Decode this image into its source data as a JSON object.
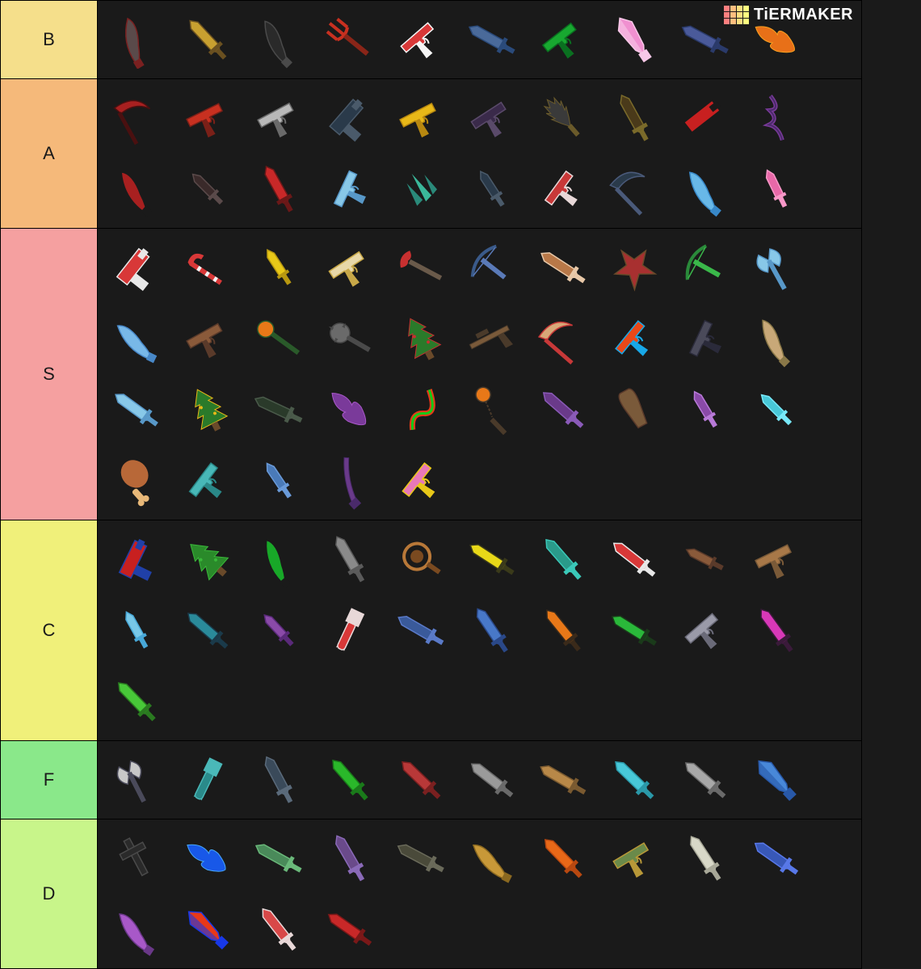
{
  "watermark": {
    "text": "TiERMAKER",
    "grid_colors": [
      "#ff7f7f",
      "#ffbf7f",
      "#ffdf7f",
      "#ffff7f",
      "#ff7f7f",
      "#ffbf7f",
      "#ffdf7f",
      "#ffff7f",
      "#ff7f7f",
      "#ffbf7f",
      "#ffdf7f",
      "#ffff7f"
    ]
  },
  "background_color": "#1a1a1a",
  "item_cell_size": 84,
  "label_width": 120,
  "list_width": 1067,
  "tiers": [
    {
      "label": "B",
      "color": "#f5df8b",
      "items": [
        {
          "name": "feather-scimitar",
          "shape": "curved-blade",
          "c1": "#5a4a4a",
          "c2": "#7a2020"
        },
        {
          "name": "gold-medieval-sword",
          "shape": "sword",
          "c1": "#c8a030",
          "c2": "#6a5020"
        },
        {
          "name": "black-hook-blade",
          "shape": "curved-blade",
          "c1": "#2a2a2a",
          "c2": "#4a4a4a"
        },
        {
          "name": "red-trident",
          "shape": "trident",
          "c1": "#c83020",
          "c2": "#8a2518"
        },
        {
          "name": "candy-cane-gun",
          "shape": "pistol",
          "c1": "#d83838",
          "c2": "#f5f5f5"
        },
        {
          "name": "blue-thin-sword",
          "shape": "sword",
          "c1": "#4a6a9a",
          "c2": "#2a4a7a"
        },
        {
          "name": "green-laser-pistol",
          "shape": "pistol",
          "c1": "#18a830",
          "c2": "#0a7020"
        },
        {
          "name": "pink-crystal-sword",
          "shape": "crystal-sword",
          "c1": "#f090d0",
          "c2": "#f8c8e8"
        },
        {
          "name": "blue-pixel-sword",
          "shape": "sword",
          "c1": "#4a5a9a",
          "c2": "#2a3a6a"
        },
        {
          "name": "flame-blade",
          "shape": "flame",
          "c1": "#e87018",
          "c2": "#f8a020"
        }
      ]
    },
    {
      "label": "A",
      "color": "#f5b97a",
      "items": [
        {
          "name": "red-bat-scythe",
          "shape": "scythe",
          "c1": "#a82020",
          "c2": "#4a1010"
        },
        {
          "name": "red-revolver",
          "shape": "pistol",
          "c1": "#c83020",
          "c2": "#7a2018"
        },
        {
          "name": "silver-chrome-gun",
          "shape": "pistol",
          "c1": "#b8b8b8",
          "c2": "#6a6a6a"
        },
        {
          "name": "dark-tech-gun",
          "shape": "boxy-gun",
          "c1": "#2a3a4a",
          "c2": "#4a5a6a"
        },
        {
          "name": "gold-luger",
          "shape": "pistol",
          "c1": "#e8b818",
          "c2": "#b88810"
        },
        {
          "name": "shadow-revolver",
          "shape": "pistol",
          "c1": "#3a2a4a",
          "c2": "#5a4a6a"
        },
        {
          "name": "spiked-dark-blade",
          "shape": "spiked-blade",
          "c1": "#3a3a3a",
          "c2": "#6a5a2a"
        },
        {
          "name": "ornate-dark-sword",
          "shape": "sword",
          "c1": "#4a3a1a",
          "c2": "#7a6a2a"
        },
        {
          "name": "red-black-blaster",
          "shape": "boxy-gun",
          "c1": "#c82020",
          "c2": "#1a1a1a"
        },
        {
          "name": "purple-tendril",
          "shape": "tendril",
          "c1": "#7a3a9a",
          "c2": "#4a2a6a"
        },
        {
          "name": "red-black-curved",
          "shape": "curved-blade",
          "c1": "#a82020",
          "c2": "#1a1a1a"
        },
        {
          "name": "thin-black-dagger",
          "shape": "dagger",
          "c1": "#3a2a2a",
          "c2": "#5a4a4a"
        },
        {
          "name": "red-energy-sword",
          "shape": "sword",
          "c1": "#c82828",
          "c2": "#6a1818"
        },
        {
          "name": "ice-blue-pistol",
          "shape": "pistol",
          "c1": "#88c8e8",
          "c2": "#5898c8"
        },
        {
          "name": "teal-crystal-shards",
          "shape": "shards",
          "c1": "#2a8a7a",
          "c2": "#3ab89a"
        },
        {
          "name": "dark-short-blade",
          "shape": "dagger",
          "c1": "#2a3a4a",
          "c2": "#4a5a6a"
        },
        {
          "name": "candy-revolver",
          "shape": "pistol",
          "c1": "#c83838",
          "c2": "#e8d8d8"
        },
        {
          "name": "dark-wave-scythe",
          "shape": "scythe",
          "c1": "#2a3a4a",
          "c2": "#4a5a7a"
        },
        {
          "name": "ice-wave-blade",
          "shape": "curved-blade",
          "c1": "#68b8e8",
          "c2": "#3888c8"
        },
        {
          "name": "pink-crystal-knife",
          "shape": "dagger",
          "c1": "#e868a8",
          "c2": "#f898c8"
        }
      ]
    },
    {
      "label": "S",
      "color": "#f5a0a0",
      "items": [
        {
          "name": "red-white-blaster",
          "shape": "boxy-gun",
          "c1": "#d83838",
          "c2": "#e8e8e8"
        },
        {
          "name": "candy-cane-staff",
          "shape": "cane",
          "c1": "#d83838",
          "c2": "#f5f5f5"
        },
        {
          "name": "gold-knife",
          "shape": "dagger",
          "c1": "#e8c818",
          "c2": "#b89810"
        },
        {
          "name": "white-gold-pistol",
          "shape": "pistol",
          "c1": "#e8d8a8",
          "c2": "#c8a848"
        },
        {
          "name": "red-ribbon-wand",
          "shape": "wand",
          "c1": "#c83030",
          "c2": "#6a5a4a"
        },
        {
          "name": "blue-crossbow",
          "shape": "crossbow",
          "c1": "#3a5a8a",
          "c2": "#5a7ab8"
        },
        {
          "name": "gingerbread-sword",
          "shape": "sword",
          "c1": "#b87848",
          "c2": "#e8c8a8"
        },
        {
          "name": "ornate-red-star",
          "shape": "star-weapon",
          "c1": "#a83030",
          "c2": "#6a4a2a"
        },
        {
          "name": "green-crossbow",
          "shape": "crossbow",
          "c1": "#2a8a3a",
          "c2": "#3ab84a"
        },
        {
          "name": "ice-axe",
          "shape": "axe",
          "c1": "#88c8e8",
          "c2": "#5898c8"
        },
        {
          "name": "ice-dual-blade",
          "shape": "curved-blade",
          "c1": "#78b8e8",
          "c2": "#4888c8"
        },
        {
          "name": "rust-revolver",
          "shape": "pistol",
          "c1": "#8a5a3a",
          "c2": "#5a3a2a"
        },
        {
          "name": "pumpkin-staff",
          "shape": "staff",
          "c1": "#e87818",
          "c2": "#2a5a2a"
        },
        {
          "name": "spiked-mace",
          "shape": "mace",
          "c1": "#6a6a6a",
          "c2": "#4a4a4a"
        },
        {
          "name": "christmas-tree-1",
          "shape": "tree",
          "c1": "#2a7a2a",
          "c2": "#c83030"
        },
        {
          "name": "brown-sniper",
          "shape": "rifle",
          "c1": "#7a5a3a",
          "c2": "#4a3a2a"
        },
        {
          "name": "candy-scythe",
          "shape": "scythe",
          "c1": "#d8a878",
          "c2": "#c83838"
        },
        {
          "name": "rainbow-pistol",
          "shape": "pistol",
          "c1": "#e84818",
          "c2": "#18a8e8"
        },
        {
          "name": "dark-steel-pistol",
          "shape": "pistol",
          "c1": "#4a4a5a",
          "c2": "#2a2a3a"
        },
        {
          "name": "tan-curved-blade",
          "shape": "curved-blade",
          "c1": "#c8a878",
          "c2": "#8a7848"
        },
        {
          "name": "ice-great-sword",
          "shape": "sword",
          "c1": "#88c8e8",
          "c2": "#5898c8"
        },
        {
          "name": "christmas-tree-2",
          "shape": "tree",
          "c1": "#2a7a2a",
          "c2": "#e8b818"
        },
        {
          "name": "dark-thorn-sword",
          "shape": "sword",
          "c1": "#2a3a2a",
          "c2": "#4a5a4a"
        },
        {
          "name": "purple-flame",
          "shape": "flame",
          "c1": "#7a3a9a",
          "c2": "#a858c8"
        },
        {
          "name": "rainbow-wave",
          "shape": "wave",
          "c1": "#e83818",
          "c2": "#18c818"
        },
        {
          "name": "pumpkin-flail",
          "shape": "flail",
          "c1": "#e87818",
          "c2": "#4a3a2a"
        },
        {
          "name": "purple-long-blade",
          "shape": "sword",
          "c1": "#6a3a8a",
          "c2": "#8a5ab8"
        },
        {
          "name": "brown-club",
          "shape": "club",
          "c1": "#7a5a3a",
          "c2": "#5a3a2a"
        },
        {
          "name": "purple-wave-knife",
          "shape": "dagger",
          "c1": "#8a4aa8",
          "c2": "#b87ad8"
        },
        {
          "name": "cyan-crystal-knife",
          "shape": "dagger",
          "c1": "#48c8d8",
          "c2": "#78e8f8"
        },
        {
          "name": "turkey-leg",
          "shape": "drumstick",
          "c1": "#b86838",
          "c2": "#e8b878"
        },
        {
          "name": "teal-revolver",
          "shape": "pistol",
          "c1": "#48b8b8",
          "c2": "#2a8888"
        },
        {
          "name": "blue-plain-knife",
          "shape": "dagger",
          "c1": "#4a7ab8",
          "c2": "#6a9ad8"
        },
        {
          "name": "purple-katana",
          "shape": "katana",
          "c1": "#6a3a8a",
          "c2": "#4a2a6a"
        },
        {
          "name": "pink-gold-pistol",
          "shape": "pistol",
          "c1": "#e878b8",
          "c2": "#e8c818"
        }
      ]
    },
    {
      "label": "C",
      "color": "#f0f07a",
      "items": [
        {
          "name": "usa-flag-gun",
          "shape": "boxy-gun",
          "c1": "#c82020",
          "c2": "#2040a8"
        },
        {
          "name": "green-tree-sword",
          "shape": "tree",
          "c1": "#2a8a2a",
          "c2": "#3ab83a"
        },
        {
          "name": "green-black-blade",
          "shape": "curved-blade",
          "c1": "#18a828",
          "c2": "#1a1a1a"
        },
        {
          "name": "grey-longsword",
          "shape": "sword",
          "c1": "#8a8a8a",
          "c2": "#5a5a5a"
        },
        {
          "name": "bronze-ornate",
          "shape": "ornate",
          "c1": "#b87838",
          "c2": "#7a4a20"
        },
        {
          "name": "yellow-spotted",
          "shape": "sword",
          "c1": "#e8d818",
          "c2": "#3a3a1a"
        },
        {
          "name": "teal-fancy-sword",
          "shape": "sword",
          "c1": "#2a9a8a",
          "c2": "#3ac8b8"
        },
        {
          "name": "red-white-stripe",
          "shape": "sword",
          "c1": "#d83838",
          "c2": "#e8e8e8"
        },
        {
          "name": "brown-leather-knife",
          "shape": "dagger",
          "c1": "#8a5a3a",
          "c2": "#5a3a2a"
        },
        {
          "name": "wood-pistol",
          "shape": "pistol",
          "c1": "#a87848",
          "c2": "#7a5a38"
        },
        {
          "name": "ice-shard-knife",
          "shape": "dagger",
          "c1": "#78c8e8",
          "c2": "#48a8d8"
        },
        {
          "name": "teal-spotted",
          "shape": "sword",
          "c1": "#2a8a9a",
          "c2": "#1a3a4a"
        },
        {
          "name": "purple-small-knife",
          "shape": "dagger",
          "c1": "#8a4aa8",
          "c2": "#5a2a7a"
        },
        {
          "name": "candy-chainsaw",
          "shape": "chainsaw",
          "c1": "#d83838",
          "c2": "#e8d8d8"
        },
        {
          "name": "blue-star-sword",
          "shape": "sword",
          "c1": "#3a5a9a",
          "c2": "#5a7ac8"
        },
        {
          "name": "blue-snowflake",
          "shape": "sword",
          "c1": "#4878c8",
          "c2": "#2a4888"
        },
        {
          "name": "orange-spotted",
          "shape": "sword",
          "c1": "#e87818",
          "c2": "#3a2a1a"
        },
        {
          "name": "green-spotted",
          "shape": "sword",
          "c1": "#2ab83a",
          "c2": "#1a3a1a"
        },
        {
          "name": "grey-tech-pistol",
          "shape": "pistol",
          "c1": "#9a9aa8",
          "c2": "#6a6a78"
        },
        {
          "name": "magenta-spotted",
          "shape": "sword",
          "c1": "#d838b8",
          "c2": "#3a1a3a"
        },
        {
          "name": "green-alien-sword",
          "shape": "sword",
          "c1": "#48c838",
          "c2": "#2a7a20"
        }
      ]
    },
    {
      "label": "F",
      "color": "#8ae88a",
      "items": [
        {
          "name": "skull-axe",
          "shape": "axe",
          "c1": "#c8c8c8",
          "c2": "#4a4a5a"
        },
        {
          "name": "teal-chainsaw",
          "shape": "chainsaw",
          "c1": "#2a8a8a",
          "c2": "#4ab8b8"
        },
        {
          "name": "dark-tech-sword",
          "shape": "sword",
          "c1": "#3a4a5a",
          "c2": "#5a6a7a"
        },
        {
          "name": "green-leaf-sword",
          "shape": "sword",
          "c1": "#2ab82a",
          "c2": "#1a7a1a"
        },
        {
          "name": "red-gem-sword",
          "shape": "sword",
          "c1": "#b83838",
          "c2": "#7a2020"
        },
        {
          "name": "ornate-grey-sword",
          "shape": "sword",
          "c1": "#9a9a9a",
          "c2": "#6a6a6a"
        },
        {
          "name": "bronze-straight",
          "shape": "sword",
          "c1": "#b88848",
          "c2": "#7a5a30"
        },
        {
          "name": "cyan-wave-sword",
          "shape": "sword",
          "c1": "#48c8d8",
          "c2": "#2a98a8"
        },
        {
          "name": "plain-steel-sword",
          "shape": "sword",
          "c1": "#a8a8a8",
          "c2": "#6a6a6a"
        },
        {
          "name": "blue-crystal-big",
          "shape": "crystal-sword",
          "c1": "#4888d8",
          "c2": "#2858a8"
        }
      ]
    },
    {
      "label": "D",
      "color": "#c8f58a",
      "items": [
        {
          "name": "black-cross-blade",
          "shape": "cross",
          "c1": "#2a2a2a",
          "c2": "#4a4a4a"
        },
        {
          "name": "blue-flame-sword",
          "shape": "flame",
          "c1": "#1858e8",
          "c2": "#48a8f8"
        },
        {
          "name": "green-armored",
          "shape": "sword",
          "c1": "#4a8a5a",
          "c2": "#6ab87a"
        },
        {
          "name": "purple-rune-sword",
          "shape": "sword",
          "c1": "#6a4a8a",
          "c2": "#8a6ab8"
        },
        {
          "name": "dark-ornate-2",
          "shape": "sword",
          "c1": "#4a4a3a",
          "c2": "#6a6a5a"
        },
        {
          "name": "gold-curve-sword",
          "shape": "curved-blade",
          "c1": "#c89838",
          "c2": "#8a6820"
        },
        {
          "name": "orange-fire-sword",
          "shape": "sword",
          "c1": "#e86818",
          "c2": "#b84810"
        },
        {
          "name": "green-brass-gun",
          "shape": "pistol",
          "c1": "#6a8a4a",
          "c2": "#b89838"
        },
        {
          "name": "bone-white-sword",
          "shape": "sword",
          "c1": "#d8d8c8",
          "c2": "#a8a898"
        },
        {
          "name": "blue-nebula",
          "shape": "sword",
          "c1": "#3858b8",
          "c2": "#5878e8"
        },
        {
          "name": "purple-orb-blade",
          "shape": "curved-blade",
          "c1": "#a858c8",
          "c2": "#6a3888"
        },
        {
          "name": "rainbow-prism",
          "shape": "crystal-sword",
          "c1": "#e83818",
          "c2": "#1838e8"
        },
        {
          "name": "candy-broadsword",
          "shape": "sword",
          "c1": "#d84848",
          "c2": "#e8d8d8"
        },
        {
          "name": "red-jagged",
          "shape": "sword",
          "c1": "#c82828",
          "c2": "#7a1818"
        }
      ]
    }
  ]
}
